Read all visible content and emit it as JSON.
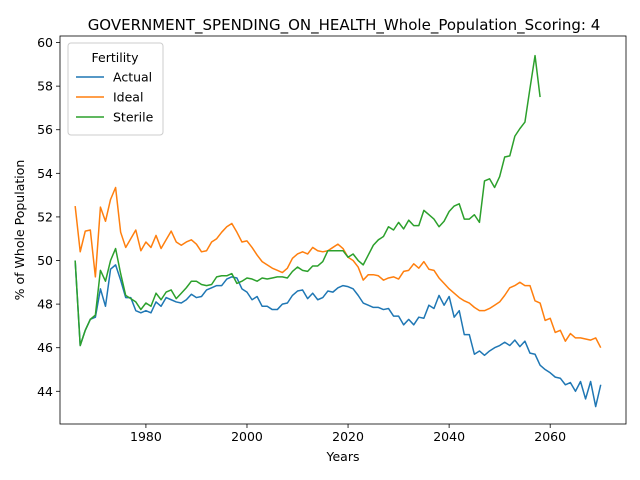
{
  "chart_data": {
    "type": "line",
    "title": "GOVERNMENT_SPENDING_ON_HEALTH_Whole_Population_Scoring: 4",
    "xlabel": "Years",
    "ylabel": "% of Whole Population",
    "xlim": [
      1963,
      2075
    ],
    "ylim": [
      42.5,
      60.3
    ],
    "xticks": [
      1980,
      2000,
      2020,
      2040,
      2060
    ],
    "yticks": [
      44,
      46,
      48,
      50,
      52,
      54,
      56,
      58,
      60
    ],
    "grid": false,
    "legend": {
      "title": "Fertility",
      "placement": "top-left"
    },
    "series": [
      {
        "name": "Actual",
        "color": "#1f77b4",
        "points": [
          [
            1966,
            50.0
          ],
          [
            1967,
            46.1
          ],
          [
            1968,
            46.8
          ],
          [
            1969,
            47.3
          ],
          [
            1970,
            47.4
          ],
          [
            1971,
            48.7
          ],
          [
            1972,
            47.9
          ],
          [
            1973,
            49.6
          ],
          [
            1974,
            49.8
          ],
          [
            1975,
            49.1
          ],
          [
            1976,
            48.3
          ],
          [
            1977,
            48.3
          ],
          [
            1978,
            47.7
          ],
          [
            1979,
            47.6
          ],
          [
            1980,
            47.7
          ],
          [
            1981,
            47.6
          ],
          [
            1982,
            48.1
          ],
          [
            1983,
            47.9
          ],
          [
            1984,
            48.3
          ],
          [
            1985,
            48.2
          ],
          [
            1986,
            48.1
          ],
          [
            1987,
            48.05
          ],
          [
            1988,
            48.2
          ],
          [
            1989,
            48.45
          ],
          [
            1990,
            48.3
          ],
          [
            1991,
            48.35
          ],
          [
            1992,
            48.65
          ],
          [
            1993,
            48.75
          ],
          [
            1994,
            48.85
          ],
          [
            1995,
            48.85
          ],
          [
            1996,
            49.15
          ],
          [
            1997,
            49.25
          ],
          [
            1998,
            49.2
          ],
          [
            1999,
            48.7
          ],
          [
            2000,
            48.55
          ],
          [
            2001,
            48.2
          ],
          [
            2002,
            48.35
          ],
          [
            2003,
            47.9
          ],
          [
            2004,
            47.9
          ],
          [
            2005,
            47.75
          ],
          [
            2006,
            47.75
          ],
          [
            2007,
            48.0
          ],
          [
            2008,
            48.05
          ],
          [
            2009,
            48.4
          ],
          [
            2010,
            48.6
          ],
          [
            2011,
            48.65
          ],
          [
            2012,
            48.25
          ],
          [
            2013,
            48.5
          ],
          [
            2014,
            48.2
          ],
          [
            2015,
            48.3
          ],
          [
            2016,
            48.6
          ],
          [
            2017,
            48.55
          ],
          [
            2018,
            48.75
          ],
          [
            2019,
            48.85
          ],
          [
            2020,
            48.8
          ],
          [
            2021,
            48.7
          ],
          [
            2022,
            48.4
          ],
          [
            2023,
            48.05
          ],
          [
            2024,
            47.95
          ],
          [
            2025,
            47.85
          ],
          [
            2026,
            47.85
          ],
          [
            2027,
            47.75
          ],
          [
            2028,
            47.8
          ],
          [
            2029,
            47.45
          ],
          [
            2030,
            47.45
          ],
          [
            2031,
            47.05
          ],
          [
            2032,
            47.3
          ],
          [
            2033,
            47.05
          ],
          [
            2034,
            47.4
          ],
          [
            2035,
            47.35
          ],
          [
            2036,
            47.95
          ],
          [
            2037,
            47.8
          ],
          [
            2038,
            48.4
          ],
          [
            2039,
            47.95
          ],
          [
            2040,
            48.35
          ],
          [
            2041,
            47.4
          ],
          [
            2042,
            47.7
          ],
          [
            2043,
            46.6
          ],
          [
            2044,
            46.6
          ],
          [
            2045,
            45.7
          ],
          [
            2046,
            45.85
          ],
          [
            2047,
            45.65
          ],
          [
            2048,
            45.85
          ],
          [
            2049,
            46.0
          ],
          [
            2050,
            46.1
          ],
          [
            2051,
            46.25
          ],
          [
            2052,
            46.1
          ],
          [
            2053,
            46.35
          ],
          [
            2054,
            46.05
          ],
          [
            2055,
            46.3
          ],
          [
            2056,
            45.75
          ],
          [
            2057,
            45.7
          ],
          [
            2058,
            45.2
          ],
          [
            2059,
            45.0
          ],
          [
            2060,
            44.85
          ],
          [
            2061,
            44.65
          ],
          [
            2062,
            44.6
          ],
          [
            2063,
            44.3
          ],
          [
            2064,
            44.4
          ],
          [
            2065,
            44.0
          ],
          [
            2066,
            44.45
          ],
          [
            2067,
            43.65
          ],
          [
            2068,
            44.45
          ],
          [
            2069,
            43.3
          ],
          [
            2070,
            44.3
          ]
        ]
      },
      {
        "name": "Ideal",
        "color": "#ff7f0e",
        "points": [
          [
            1966,
            52.5
          ],
          [
            1967,
            50.4
          ],
          [
            1968,
            51.35
          ],
          [
            1969,
            51.4
          ],
          [
            1970,
            49.25
          ],
          [
            1971,
            52.45
          ],
          [
            1972,
            51.8
          ],
          [
            1973,
            52.8
          ],
          [
            1974,
            53.35
          ],
          [
            1975,
            51.3
          ],
          [
            1976,
            50.6
          ],
          [
            1977,
            51.0
          ],
          [
            1978,
            51.4
          ],
          [
            1979,
            50.45
          ],
          [
            1980,
            50.85
          ],
          [
            1981,
            50.6
          ],
          [
            1982,
            51.15
          ],
          [
            1983,
            50.55
          ],
          [
            1984,
            50.95
          ],
          [
            1985,
            51.35
          ],
          [
            1986,
            50.85
          ],
          [
            1987,
            50.7
          ],
          [
            1988,
            50.85
          ],
          [
            1989,
            50.95
          ],
          [
            1990,
            50.75
          ],
          [
            1991,
            50.4
          ],
          [
            1992,
            50.45
          ],
          [
            1993,
            50.85
          ],
          [
            1994,
            51.0
          ],
          [
            1995,
            51.3
          ],
          [
            1996,
            51.55
          ],
          [
            1997,
            51.7
          ],
          [
            1998,
            51.3
          ],
          [
            1999,
            50.85
          ],
          [
            2000,
            50.9
          ],
          [
            2001,
            50.6
          ],
          [
            2002,
            50.25
          ],
          [
            2003,
            49.95
          ],
          [
            2004,
            49.8
          ],
          [
            2005,
            49.65
          ],
          [
            2006,
            49.55
          ],
          [
            2007,
            49.45
          ],
          [
            2008,
            49.65
          ],
          [
            2009,
            50.1
          ],
          [
            2010,
            50.3
          ],
          [
            2011,
            50.4
          ],
          [
            2012,
            50.3
          ],
          [
            2013,
            50.6
          ],
          [
            2014,
            50.45
          ],
          [
            2015,
            50.4
          ],
          [
            2016,
            50.45
          ],
          [
            2017,
            50.6
          ],
          [
            2018,
            50.75
          ],
          [
            2019,
            50.55
          ],
          [
            2020,
            50.15
          ],
          [
            2021,
            50.0
          ],
          [
            2022,
            49.7
          ],
          [
            2023,
            49.1
          ],
          [
            2024,
            49.35
          ],
          [
            2025,
            49.35
          ],
          [
            2026,
            49.3
          ],
          [
            2027,
            49.1
          ],
          [
            2028,
            49.2
          ],
          [
            2029,
            49.25
          ],
          [
            2030,
            49.15
          ],
          [
            2031,
            49.5
          ],
          [
            2032,
            49.55
          ],
          [
            2033,
            49.85
          ],
          [
            2034,
            49.65
          ],
          [
            2035,
            49.95
          ],
          [
            2036,
            49.6
          ],
          [
            2037,
            49.55
          ],
          [
            2038,
            49.2
          ],
          [
            2039,
            48.95
          ],
          [
            2040,
            48.7
          ],
          [
            2041,
            48.5
          ],
          [
            2042,
            48.3
          ],
          [
            2043,
            48.15
          ],
          [
            2044,
            48.05
          ],
          [
            2045,
            47.85
          ],
          [
            2046,
            47.7
          ],
          [
            2047,
            47.7
          ],
          [
            2048,
            47.8
          ],
          [
            2049,
            47.95
          ],
          [
            2050,
            48.1
          ],
          [
            2051,
            48.4
          ],
          [
            2052,
            48.75
          ],
          [
            2053,
            48.85
          ],
          [
            2054,
            49.0
          ],
          [
            2055,
            48.85
          ],
          [
            2056,
            48.85
          ],
          [
            2057,
            48.15
          ],
          [
            2058,
            48.05
          ],
          [
            2059,
            47.25
          ],
          [
            2060,
            47.35
          ],
          [
            2061,
            46.7
          ],
          [
            2062,
            46.8
          ],
          [
            2063,
            46.3
          ],
          [
            2064,
            46.65
          ],
          [
            2065,
            46.45
          ],
          [
            2066,
            46.45
          ],
          [
            2067,
            46.4
          ],
          [
            2068,
            46.35
          ],
          [
            2069,
            46.45
          ],
          [
            2070,
            46.0
          ]
        ]
      },
      {
        "name": "Sterile",
        "color": "#2ca02c",
        "points": [
          [
            1966,
            50.0
          ],
          [
            1967,
            46.1
          ],
          [
            1968,
            46.8
          ],
          [
            1969,
            47.3
          ],
          [
            1970,
            47.5
          ],
          [
            1971,
            49.55
          ],
          [
            1972,
            49.05
          ],
          [
            1973,
            50.0
          ],
          [
            1974,
            50.55
          ],
          [
            1975,
            49.4
          ],
          [
            1976,
            48.4
          ],
          [
            1977,
            48.25
          ],
          [
            1978,
            48.1
          ],
          [
            1979,
            47.75
          ],
          [
            1980,
            48.05
          ],
          [
            1981,
            47.9
          ],
          [
            1982,
            48.5
          ],
          [
            1983,
            48.2
          ],
          [
            1984,
            48.55
          ],
          [
            1985,
            48.65
          ],
          [
            1986,
            48.25
          ],
          [
            1987,
            48.5
          ],
          [
            1988,
            48.75
          ],
          [
            1989,
            49.05
          ],
          [
            1990,
            49.05
          ],
          [
            1991,
            48.9
          ],
          [
            1992,
            48.85
          ],
          [
            1993,
            48.9
          ],
          [
            1994,
            49.25
          ],
          [
            1995,
            49.3
          ],
          [
            1996,
            49.3
          ],
          [
            1997,
            49.4
          ],
          [
            1998,
            48.95
          ],
          [
            1999,
            49.05
          ],
          [
            2000,
            49.2
          ],
          [
            2001,
            49.15
          ],
          [
            2002,
            49.05
          ],
          [
            2003,
            49.2
          ],
          [
            2004,
            49.15
          ],
          [
            2005,
            49.2
          ],
          [
            2006,
            49.25
          ],
          [
            2007,
            49.25
          ],
          [
            2008,
            49.2
          ],
          [
            2009,
            49.5
          ],
          [
            2010,
            49.7
          ],
          [
            2011,
            49.55
          ],
          [
            2012,
            49.5
          ],
          [
            2013,
            49.75
          ],
          [
            2014,
            49.75
          ],
          [
            2015,
            49.95
          ],
          [
            2016,
            50.45
          ],
          [
            2017,
            50.45
          ],
          [
            2018,
            50.45
          ],
          [
            2019,
            50.45
          ],
          [
            2020,
            50.15
          ],
          [
            2021,
            50.3
          ],
          [
            2022,
            50.0
          ],
          [
            2023,
            49.8
          ],
          [
            2024,
            50.25
          ],
          [
            2025,
            50.7
          ],
          [
            2026,
            50.95
          ],
          [
            2027,
            51.1
          ],
          [
            2028,
            51.55
          ],
          [
            2029,
            51.4
          ],
          [
            2030,
            51.75
          ],
          [
            2031,
            51.45
          ],
          [
            2032,
            51.85
          ],
          [
            2033,
            51.6
          ],
          [
            2034,
            51.6
          ],
          [
            2035,
            52.3
          ],
          [
            2036,
            52.1
          ],
          [
            2037,
            51.9
          ],
          [
            2038,
            51.55
          ],
          [
            2039,
            51.8
          ],
          [
            2040,
            52.25
          ],
          [
            2041,
            52.5
          ],
          [
            2042,
            52.6
          ],
          [
            2043,
            51.9
          ],
          [
            2044,
            51.9
          ],
          [
            2045,
            52.1
          ],
          [
            2046,
            51.75
          ],
          [
            2047,
            53.65
          ],
          [
            2048,
            53.75
          ],
          [
            2049,
            53.35
          ],
          [
            2050,
            53.85
          ],
          [
            2051,
            54.75
          ],
          [
            2052,
            54.8
          ],
          [
            2053,
            55.7
          ],
          [
            2054,
            56.05
          ],
          [
            2055,
            56.35
          ],
          [
            2056,
            57.9
          ],
          [
            2057,
            59.4
          ],
          [
            2058,
            57.5
          ]
        ]
      }
    ]
  }
}
